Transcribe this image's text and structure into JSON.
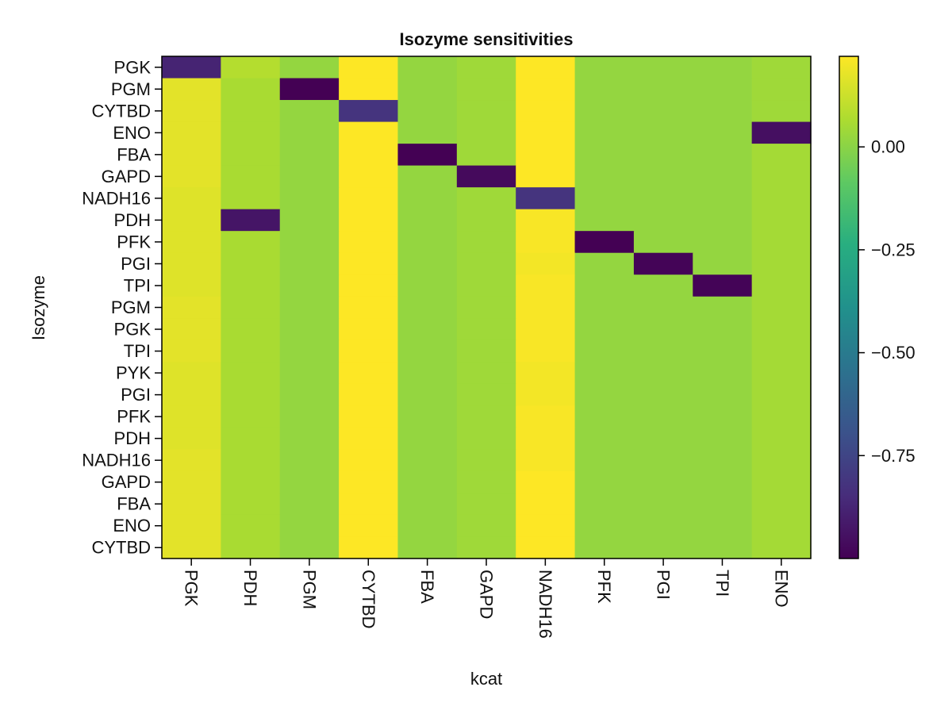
{
  "chart_data": {
    "type": "heatmap",
    "title": "Isozyme sensitivities",
    "xlabel": "kcat",
    "ylabel": "Isozyme",
    "x_categories": [
      "PGK",
      "PDH",
      "PGM",
      "CYTBD",
      "FBA",
      "GAPD",
      "NADH16",
      "PFK",
      "PGI",
      "TPI",
      "ENO"
    ],
    "y_categories": [
      "PGK",
      "PGM",
      "CYTBD",
      "ENO",
      "FBA",
      "GAPD",
      "NADH16",
      "PDH",
      "PFK",
      "PGI",
      "TPI",
      "PGM",
      "PGK",
      "TPI",
      "PYK",
      "PGI",
      "PFK",
      "PDH",
      "NADH16",
      "GAPD",
      "FBA",
      "ENO",
      "CYTBD"
    ],
    "values": [
      [
        -0.88,
        0.08,
        0.02,
        0.22,
        0.02,
        0.04,
        0.22,
        0.02,
        0.02,
        0.02,
        0.04
      ],
      [
        0.17,
        0.06,
        -1.0,
        0.22,
        0.02,
        0.04,
        0.22,
        0.02,
        0.02,
        0.02,
        0.04
      ],
      [
        0.17,
        0.06,
        0.02,
        -0.82,
        0.02,
        0.04,
        0.22,
        0.02,
        0.02,
        0.02,
        0.04
      ],
      [
        0.17,
        0.06,
        0.02,
        0.22,
        0.02,
        0.04,
        0.22,
        0.02,
        0.02,
        0.02,
        -0.95
      ],
      [
        0.17,
        0.06,
        0.02,
        0.22,
        -1.0,
        0.04,
        0.22,
        0.02,
        0.02,
        0.02,
        0.05
      ],
      [
        0.17,
        0.06,
        0.02,
        0.22,
        0.02,
        -0.97,
        0.22,
        0.02,
        0.02,
        0.02,
        0.05
      ],
      [
        0.16,
        0.06,
        0.02,
        0.22,
        0.02,
        0.04,
        -0.82,
        0.02,
        0.02,
        0.02,
        0.05
      ],
      [
        0.16,
        -0.93,
        0.02,
        0.22,
        0.02,
        0.04,
        0.21,
        0.02,
        0.02,
        0.02,
        0.05
      ],
      [
        0.16,
        0.06,
        0.02,
        0.22,
        0.02,
        0.04,
        0.21,
        -1.0,
        0.02,
        0.02,
        0.05
      ],
      [
        0.16,
        0.06,
        0.02,
        0.22,
        0.02,
        0.04,
        0.2,
        0.02,
        -0.99,
        0.02,
        0.05
      ],
      [
        0.16,
        0.06,
        0.02,
        0.22,
        0.02,
        0.04,
        0.21,
        0.02,
        0.02,
        -0.99,
        0.05
      ],
      [
        0.17,
        0.06,
        0.02,
        0.22,
        0.02,
        0.04,
        0.21,
        0.02,
        0.02,
        0.02,
        0.05
      ],
      [
        0.17,
        0.06,
        0.02,
        0.22,
        0.02,
        0.04,
        0.21,
        0.02,
        0.02,
        0.02,
        0.05
      ],
      [
        0.17,
        0.06,
        0.02,
        0.22,
        0.02,
        0.04,
        0.21,
        0.02,
        0.02,
        0.02,
        0.05
      ],
      [
        0.16,
        0.06,
        0.02,
        0.22,
        0.02,
        0.04,
        0.2,
        0.02,
        0.02,
        0.02,
        0.05
      ],
      [
        0.16,
        0.06,
        0.02,
        0.22,
        0.02,
        0.04,
        0.2,
        0.02,
        0.02,
        0.02,
        0.05
      ],
      [
        0.16,
        0.06,
        0.02,
        0.22,
        0.02,
        0.04,
        0.21,
        0.02,
        0.02,
        0.02,
        0.05
      ],
      [
        0.16,
        0.06,
        0.02,
        0.22,
        0.02,
        0.04,
        0.21,
        0.02,
        0.02,
        0.02,
        0.05
      ],
      [
        0.17,
        0.06,
        0.02,
        0.22,
        0.02,
        0.04,
        0.21,
        0.02,
        0.02,
        0.02,
        0.05
      ],
      [
        0.17,
        0.06,
        0.02,
        0.22,
        0.02,
        0.04,
        0.22,
        0.02,
        0.02,
        0.02,
        0.05
      ],
      [
        0.17,
        0.06,
        0.02,
        0.22,
        0.02,
        0.04,
        0.22,
        0.02,
        0.02,
        0.02,
        0.05
      ],
      [
        0.17,
        0.06,
        0.02,
        0.22,
        0.02,
        0.04,
        0.22,
        0.02,
        0.02,
        0.02,
        0.05
      ],
      [
        0.17,
        0.06,
        0.02,
        0.22,
        0.02,
        0.04,
        0.22,
        0.02,
        0.02,
        0.02,
        0.05
      ]
    ],
    "colorbar": {
      "colormap": "viridis",
      "range": [
        -1.0,
        0.22
      ],
      "ticks": [
        0.0,
        -0.25,
        -0.5,
        -0.75
      ],
      "tick_labels": [
        "0.00",
        "−0.25",
        "−0.50",
        "−0.75"
      ]
    },
    "grid": false
  }
}
